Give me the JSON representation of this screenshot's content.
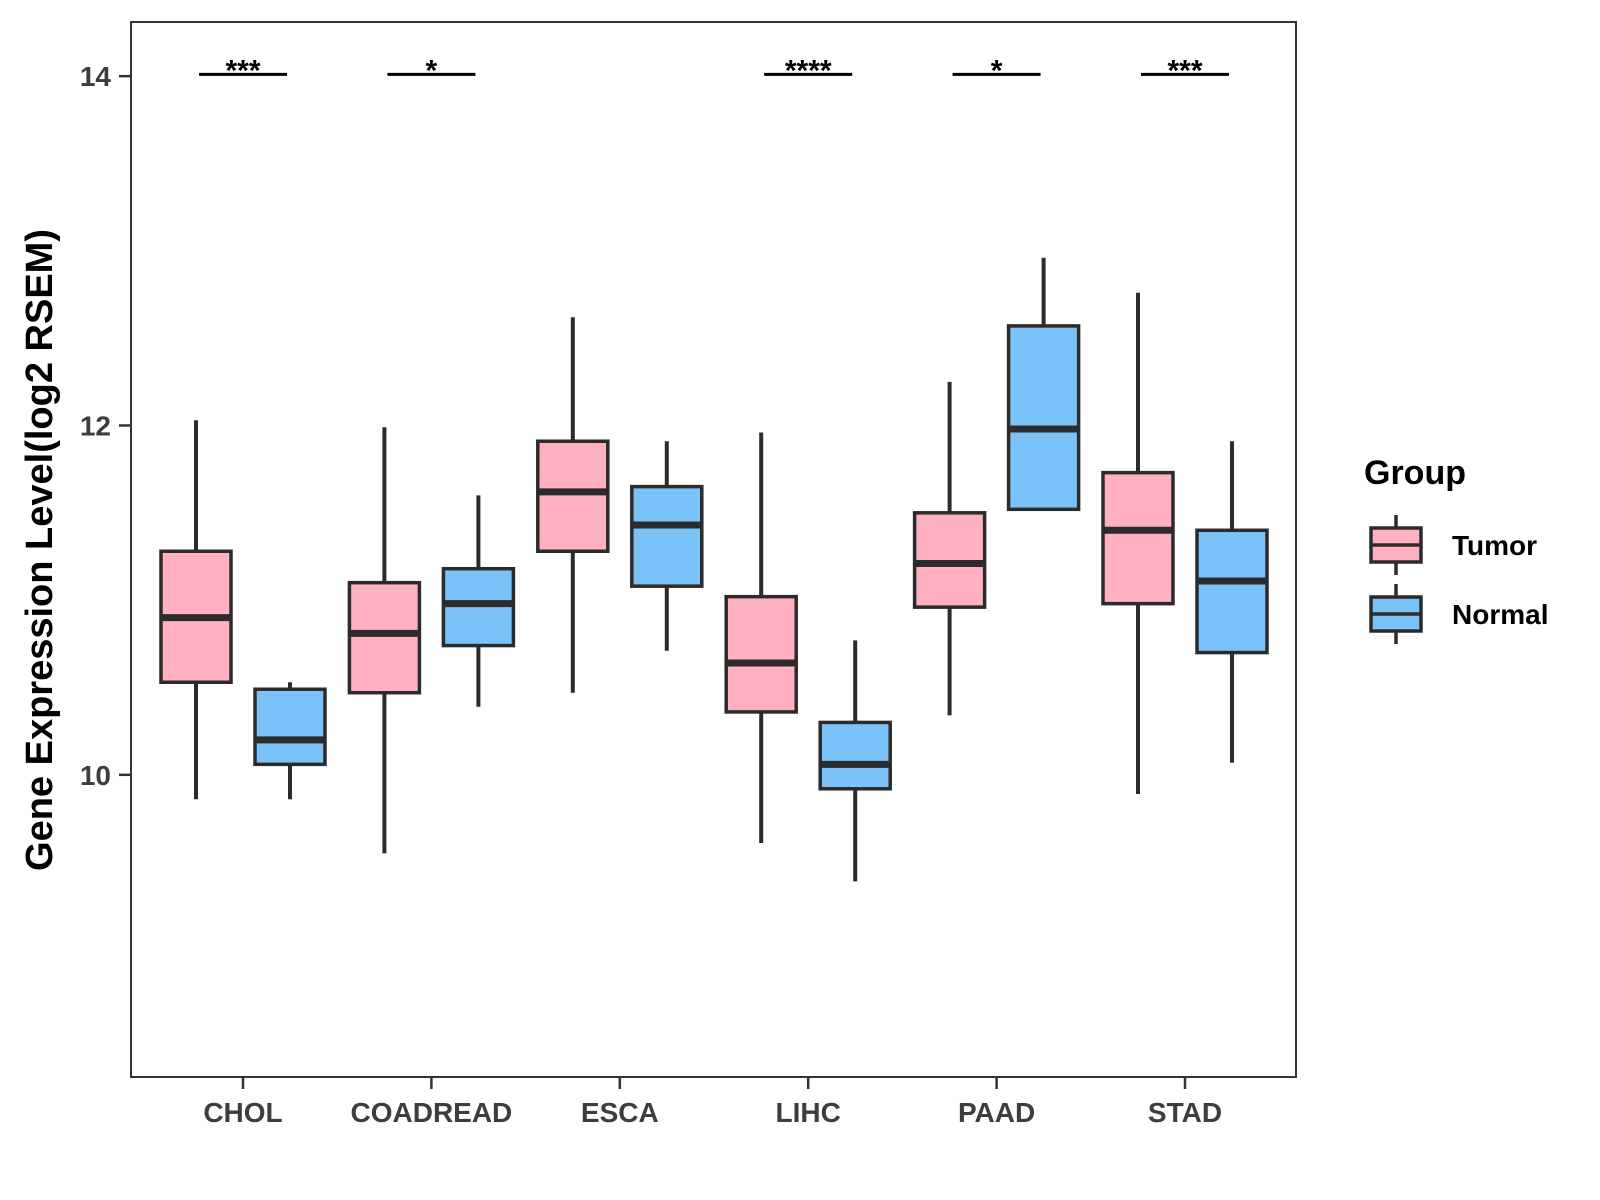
{
  "chart_data": {
    "type": "boxplot",
    "ylabel": "Gene Expression Level(log2 RSEM)",
    "ylim": [
      8.27,
      14.31
    ],
    "y_ticks": [
      10,
      12,
      14
    ],
    "categories": [
      "CHOL",
      "COADREAD",
      "ESCA",
      "LIHC",
      "PAAD",
      "STAD"
    ],
    "legend": {
      "title": "Group",
      "position": "right",
      "entries": [
        {
          "name": "Tumor",
          "color": "#FFB1C1"
        },
        {
          "name": "Normal",
          "color": "#7AC2F8"
        }
      ]
    },
    "series": [
      {
        "name": "Tumor",
        "color": "#FFB1C1",
        "boxes": [
          {
            "whisker_low": 9.86,
            "q1": 10.53,
            "median": 10.9,
            "q3": 11.28,
            "whisker_high": 12.03
          },
          {
            "whisker_low": 9.55,
            "q1": 10.47,
            "median": 10.81,
            "q3": 11.1,
            "whisker_high": 11.99
          },
          {
            "whisker_low": 10.47,
            "q1": 11.28,
            "median": 11.62,
            "q3": 11.91,
            "whisker_high": 12.62
          },
          {
            "whisker_low": 9.61,
            "q1": 10.36,
            "median": 10.64,
            "q3": 11.02,
            "whisker_high": 11.96
          },
          {
            "whisker_low": 10.34,
            "q1": 10.96,
            "median": 11.21,
            "q3": 11.5,
            "whisker_high": 12.25
          },
          {
            "whisker_low": 9.89,
            "q1": 10.98,
            "median": 11.4,
            "q3": 11.73,
            "whisker_high": 12.76
          }
        ]
      },
      {
        "name": "Normal",
        "color": "#7AC2F8",
        "boxes": [
          {
            "whisker_low": 9.86,
            "q1": 10.06,
            "median": 10.2,
            "q3": 10.49,
            "whisker_high": 10.53
          },
          {
            "whisker_low": 10.39,
            "q1": 10.74,
            "median": 10.98,
            "q3": 11.18,
            "whisker_high": 11.6
          },
          {
            "whisker_low": 10.71,
            "q1": 11.08,
            "median": 11.43,
            "q3": 11.65,
            "whisker_high": 11.91
          },
          {
            "whisker_low": 9.39,
            "q1": 9.92,
            "median": 10.06,
            "q3": 10.3,
            "whisker_high": 10.77
          },
          {
            "whisker_low": 11.52,
            "q1": 11.52,
            "median": 11.98,
            "q3": 12.57,
            "whisker_high": 12.96
          },
          {
            "whisker_low": 10.07,
            "q1": 10.7,
            "median": 11.11,
            "q3": 11.4,
            "whisker_high": 11.91
          }
        ]
      }
    ],
    "significance": [
      {
        "category": "CHOL",
        "label": "***",
        "y": 14.01
      },
      {
        "category": "COADREAD",
        "label": "*",
        "y": 14.01
      },
      {
        "category": "LIHC",
        "label": "****",
        "y": 14.01
      },
      {
        "category": "PAAD",
        "label": "*",
        "y": 14.01
      },
      {
        "category": "STAD",
        "label": "***",
        "y": 14.01
      }
    ]
  }
}
